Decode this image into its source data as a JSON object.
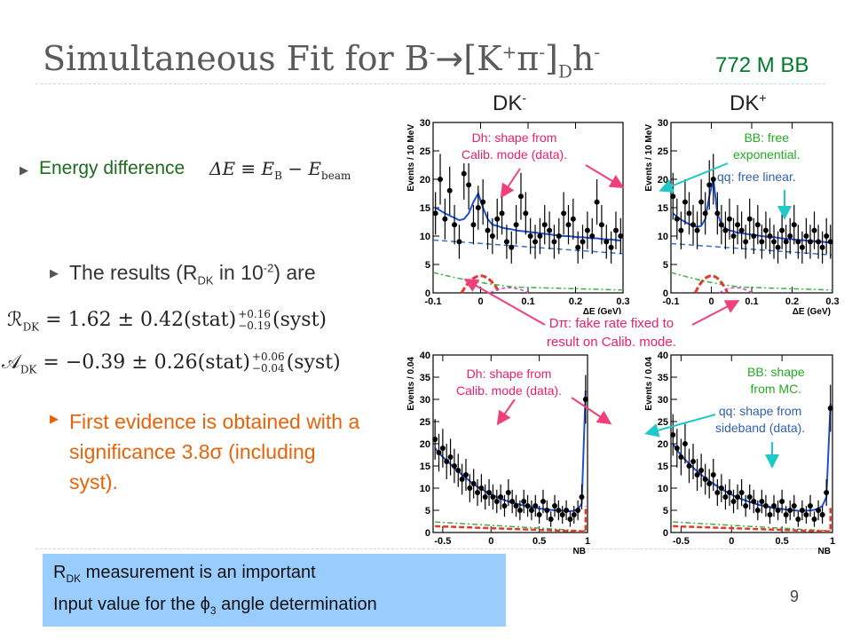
{
  "slide": {
    "title_main": "Simultaneous Fit for B",
    "title_sup1": "-",
    "title_arrow": "→",
    "title_rest": "[K",
    "title_sup2": "+",
    "title_pi": "π",
    "title_sup3": "-",
    "title_bracket": "]",
    "title_sub": "D",
    "title_h": "h",
    "title_sup4": "-",
    "bb_count": "772 M BB",
    "page_number": "9"
  },
  "bullets": {
    "energy_label": "Energy difference",
    "energy_formula_lhs": "ΔE ≡ E",
    "energy_formula_sub1": "B",
    "energy_formula_mid": " − E",
    "energy_formula_sub2": "beam",
    "results_pre": "The results (R",
    "results_sub": "DK",
    "results_mid": " in 10",
    "results_sup": "-2",
    "results_post": ") are",
    "evidence_text": "First evidence is obtained with a significance 3.8σ (including syst)."
  },
  "equations": {
    "r_lhs": "ℛ",
    "r_sub": "DK",
    "r_body": " = 1.62 ± 0.42(stat)",
    "r_syst_up": "+0.16",
    "r_syst_down": "−0.19",
    "r_tail": "(syst)",
    "a_lhs": "𝒜",
    "a_sub": "DK",
    "a_body": " = −0.39 ± 0.26(stat)",
    "a_syst_up": "+0.06",
    "a_syst_down": "−0.04",
    "a_tail": "(syst)"
  },
  "callout": {
    "line1_pre": "R",
    "line1_sub": "DK",
    "line1_post": " measurement is an important",
    "line2_pre": "Input value for the ",
    "line2_phi": "ϕ",
    "line2_sub": "3",
    "line2_post": " angle determination"
  },
  "figure": {
    "label_left": "DK",
    "label_left_sup": "-",
    "label_right": "DK",
    "label_right_sup": "+",
    "ann_dh1_line1": "Dh: shape from",
    "ann_dh1_line2": "Calib. mode (data).",
    "ann_bb1_line1": "BB: free",
    "ann_bb1_line2": "exponential.",
    "ann_qq1": "qq: free linear.",
    "ann_dpi_line1": "Dπ: fake rate fixed to",
    "ann_dpi_line2": "result on Calib. mode.",
    "ann_dh2_line1": "Dh: shape from",
    "ann_dh2_line2": "Calib. mode (data).",
    "ann_bb2_line1": "BB: shape",
    "ann_bb2_line2": "from MC.",
    "ann_qq2_line1": "qq: shape from",
    "ann_qq2_line2": "sideband (data).",
    "colors": {
      "data": "#000000",
      "total_fit": "#1f4fd6",
      "bb_component": "#3a6fc8",
      "signal_component": "#e23a2a",
      "qq_component": "#3cb043",
      "dpi_component": "#cc44cc",
      "ann_red": "#e8206a",
      "ann_green": "#22aa22",
      "ann_blue": "#3060b0",
      "arrow_red": "#f0407a",
      "arrow_cyan": "#20c8c8"
    }
  },
  "chart_data": [
    {
      "type": "scatter",
      "panel": "DK- ΔE",
      "xlabel": "ΔE (GeV)",
      "ylabel": "Events / 10 MeV",
      "xlim": [
        -0.1,
        0.3
      ],
      "ylim": [
        0,
        30
      ],
      "x_ticks": [
        "-0.1",
        "0",
        "0.1",
        "0.2",
        "0.3"
      ],
      "y_ticks": [
        "0",
        "5",
        "10",
        "15",
        "20",
        "25",
        "30"
      ],
      "x": [
        -0.095,
        -0.085,
        -0.075,
        -0.065,
        -0.055,
        -0.045,
        -0.035,
        -0.025,
        -0.015,
        -0.005,
        0.005,
        0.015,
        0.025,
        0.035,
        0.045,
        0.055,
        0.065,
        0.075,
        0.085,
        0.095,
        0.105,
        0.115,
        0.125,
        0.135,
        0.145,
        0.155,
        0.165,
        0.175,
        0.185,
        0.195,
        0.205,
        0.215,
        0.225,
        0.235,
        0.245,
        0.255,
        0.265,
        0.275,
        0.285,
        0.295
      ],
      "y": [
        14,
        20,
        13,
        18,
        12,
        9,
        21,
        19,
        12,
        15,
        16,
        11,
        10,
        13,
        14,
        9,
        8,
        12,
        17,
        14,
        10,
        9,
        10,
        12,
        11,
        9,
        10,
        14,
        12,
        13,
        8,
        9,
        11,
        10,
        16,
        12,
        9,
        8,
        11,
        10
      ],
      "fit_total": [
        15,
        14.5,
        14,
        13.6,
        13.2,
        12.8,
        13,
        14,
        16,
        17.5,
        15,
        13,
        12,
        11.8,
        11.5,
        11.3,
        11.2,
        11,
        10.9,
        10.8,
        10.7,
        10.6,
        10.5,
        10.4,
        10.3,
        10.2,
        10.1,
        10,
        10,
        9.9,
        9.8,
        9.8,
        9.7,
        9.6,
        9.6,
        9.5,
        9.4,
        9.4,
        9.3,
        9.2
      ]
    },
    {
      "type": "scatter",
      "panel": "DK+ ΔE",
      "xlabel": "ΔE (GeV)",
      "ylabel": "Events / 10 MeV",
      "xlim": [
        -0.1,
        0.3
      ],
      "ylim": [
        0,
        30
      ],
      "x_ticks": [
        "-0.1",
        "0",
        "0.1",
        "0.2",
        "0.3"
      ],
      "y_ticks": [
        "0",
        "5",
        "10",
        "15",
        "20",
        "25",
        "30"
      ],
      "x": [
        -0.095,
        -0.085,
        -0.075,
        -0.065,
        -0.055,
        -0.045,
        -0.035,
        -0.025,
        -0.015,
        -0.005,
        0.005,
        0.015,
        0.025,
        0.035,
        0.045,
        0.055,
        0.065,
        0.075,
        0.085,
        0.095,
        0.105,
        0.115,
        0.125,
        0.135,
        0.145,
        0.155,
        0.165,
        0.175,
        0.185,
        0.195,
        0.205,
        0.215,
        0.225,
        0.235,
        0.245,
        0.255,
        0.265,
        0.275,
        0.285,
        0.295
      ],
      "y": [
        17,
        13,
        11,
        16,
        14,
        12,
        11,
        16,
        14,
        19,
        20,
        14,
        12,
        11,
        13,
        10,
        12,
        11,
        9,
        13,
        10,
        12,
        9,
        11,
        10,
        9,
        8,
        11,
        9,
        10,
        12,
        9,
        8,
        10,
        9,
        11,
        9,
        8,
        10,
        9
      ],
      "fit_total": [
        14,
        13.4,
        12.9,
        12.5,
        12.1,
        11.8,
        11.6,
        11.8,
        13,
        17,
        20,
        14,
        12,
        11.3,
        11,
        10.8,
        10.6,
        10.5,
        10.4,
        10.3,
        10.2,
        10.1,
        10,
        9.9,
        9.8,
        9.8,
        9.7,
        9.6,
        9.5,
        9.5,
        9.4,
        9.3,
        9.3,
        9.2,
        9.2,
        9.1,
        9,
        9,
        8.9,
        8.9
      ]
    },
    {
      "type": "scatter",
      "panel": "DK- NB",
      "xlabel": "NB",
      "ylabel": "Events / 0.04",
      "xlim": [
        -0.6,
        1.0
      ],
      "ylim": [
        0,
        40
      ],
      "x_ticks": [
        "-0.5",
        "0",
        "0.5",
        "1"
      ],
      "y_ticks": [
        "0",
        "5",
        "10",
        "15",
        "20",
        "25",
        "30",
        "35",
        "40"
      ],
      "x": [
        -0.58,
        -0.54,
        -0.5,
        -0.46,
        -0.42,
        -0.38,
        -0.34,
        -0.3,
        -0.26,
        -0.22,
        -0.18,
        -0.14,
        -0.1,
        -0.06,
        -0.02,
        0.02,
        0.06,
        0.1,
        0.14,
        0.18,
        0.22,
        0.26,
        0.3,
        0.34,
        0.38,
        0.42,
        0.46,
        0.5,
        0.54,
        0.58,
        0.62,
        0.66,
        0.7,
        0.74,
        0.78,
        0.82,
        0.86,
        0.9,
        0.94,
        0.98
      ],
      "y": [
        21,
        18,
        19,
        16,
        17,
        15,
        14,
        12,
        13,
        10,
        11,
        9,
        10,
        8,
        9,
        8,
        7,
        8,
        6,
        9,
        7,
        6,
        5,
        7,
        6,
        5,
        6,
        4,
        7,
        5,
        3,
        6,
        5,
        4,
        5,
        3,
        4,
        5,
        8,
        30
      ],
      "fit_total": [
        19,
        18,
        17,
        16.2,
        15.4,
        14.6,
        13.8,
        13,
        12.3,
        11.6,
        10.9,
        10.3,
        9.8,
        9.3,
        8.8,
        8.4,
        8,
        7.6,
        7.3,
        7,
        6.7,
        6.5,
        6.3,
        6.1,
        5.9,
        5.7,
        5.6,
        5.4,
        5.3,
        5.2,
        5.1,
        5,
        4.9,
        4.9,
        4.8,
        4.8,
        4.9,
        5.2,
        6.5,
        32
      ]
    },
    {
      "type": "scatter",
      "panel": "DK+ NB",
      "xlabel": "NB",
      "ylabel": "Events / 0.04",
      "xlim": [
        -0.6,
        1.0
      ],
      "ylim": [
        0,
        40
      ],
      "x_ticks": [
        "-0.5",
        "0",
        "0.5",
        "1"
      ],
      "y_ticks": [
        "0",
        "5",
        "10",
        "15",
        "20",
        "25",
        "30",
        "35",
        "40"
      ],
      "x": [
        -0.58,
        -0.54,
        -0.5,
        -0.46,
        -0.42,
        -0.38,
        -0.34,
        -0.3,
        -0.26,
        -0.22,
        -0.18,
        -0.14,
        -0.1,
        -0.06,
        -0.02,
        0.02,
        0.06,
        0.1,
        0.14,
        0.18,
        0.22,
        0.26,
        0.3,
        0.34,
        0.38,
        0.42,
        0.46,
        0.5,
        0.54,
        0.58,
        0.62,
        0.66,
        0.7,
        0.74,
        0.78,
        0.82,
        0.86,
        0.9,
        0.94,
        0.98
      ],
      "y": [
        22,
        19,
        17,
        20,
        15,
        16,
        13,
        14,
        12,
        11,
        13,
        9,
        10,
        8,
        9,
        7,
        8,
        9,
        6,
        8,
        7,
        5,
        7,
        6,
        4,
        6,
        5,
        7,
        4,
        5,
        6,
        3,
        5,
        4,
        6,
        3,
        5,
        4,
        9,
        28
      ],
      "fit_total": [
        20,
        18.6,
        17.4,
        16.4,
        15.5,
        14.6,
        13.8,
        13,
        12.3,
        11.6,
        11,
        10.4,
        9.8,
        9.3,
        8.8,
        8.3,
        7.9,
        7.5,
        7.2,
        6.9,
        6.6,
        6.3,
        6.1,
        5.9,
        5.7,
        5.5,
        5.4,
        5.3,
        5.2,
        5.1,
        5,
        4.9,
        4.9,
        4.9,
        5,
        5.1,
        5.4,
        6,
        8,
        29
      ]
    }
  ]
}
